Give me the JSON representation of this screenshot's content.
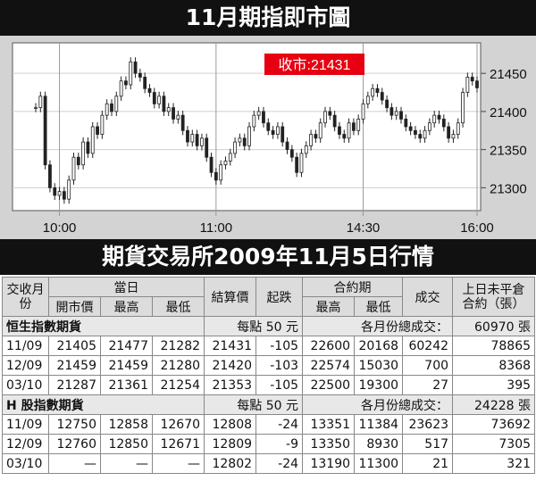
{
  "title": "11月期指即市圖",
  "subtitle": "期貨交易所2009年11月5日行情",
  "chart_data": {
    "type": "candlestick",
    "title": "11月期指即市圖",
    "close_label": "收市:21431",
    "y_ticks": [
      21300,
      21350,
      21400,
      21450
    ],
    "x_ticks": [
      "10:00",
      "11:00",
      "14:30",
      "16:00"
    ],
    "ylim": [
      21270,
      21490
    ],
    "grid": true,
    "path": [
      [
        0,
        21405
      ],
      [
        1,
        21420
      ],
      [
        2,
        21330
      ],
      [
        3,
        21300
      ],
      [
        4,
        21290
      ],
      [
        5,
        21295
      ],
      [
        6,
        21285
      ],
      [
        7,
        21310
      ],
      [
        8,
        21340
      ],
      [
        9,
        21330
      ],
      [
        10,
        21360
      ],
      [
        11,
        21345
      ],
      [
        12,
        21380
      ],
      [
        13,
        21370
      ],
      [
        14,
        21395
      ],
      [
        15,
        21410
      ],
      [
        16,
        21400
      ],
      [
        17,
        21420
      ],
      [
        18,
        21440
      ],
      [
        19,
        21435
      ],
      [
        20,
        21465
      ],
      [
        21,
        21450
      ],
      [
        22,
        21445
      ],
      [
        23,
        21430
      ],
      [
        24,
        21425
      ],
      [
        25,
        21410
      ],
      [
        26,
        21420
      ],
      [
        27,
        21400
      ],
      [
        28,
        21405
      ],
      [
        29,
        21390
      ],
      [
        30,
        21395
      ],
      [
        31,
        21375
      ],
      [
        32,
        21360
      ],
      [
        33,
        21370
      ],
      [
        34,
        21355
      ],
      [
        35,
        21365
      ],
      [
        36,
        21340
      ],
      [
        37,
        21320
      ],
      [
        38,
        21310
      ],
      [
        39,
        21330
      ],
      [
        40,
        21335
      ],
      [
        41,
        21345
      ],
      [
        42,
        21360
      ],
      [
        43,
        21365
      ],
      [
        44,
        21355
      ],
      [
        45,
        21380
      ],
      [
        46,
        21395
      ],
      [
        47,
        21400
      ],
      [
        48,
        21385
      ],
      [
        49,
        21375
      ],
      [
        50,
        21370
      ],
      [
        51,
        21380
      ],
      [
        52,
        21360
      ],
      [
        53,
        21350
      ],
      [
        54,
        21340
      ],
      [
        55,
        21320
      ],
      [
        56,
        21345
      ],
      [
        57,
        21355
      ],
      [
        58,
        21370
      ],
      [
        59,
        21365
      ],
      [
        60,
        21385
      ],
      [
        61,
        21400
      ],
      [
        62,
        21395
      ],
      [
        63,
        21380
      ],
      [
        64,
        21370
      ],
      [
        65,
        21365
      ],
      [
        66,
        21385
      ],
      [
        67,
        21375
      ],
      [
        68,
        21390
      ],
      [
        69,
        21410
      ],
      [
        70,
        21420
      ],
      [
        71,
        21430
      ],
      [
        72,
        21425
      ],
      [
        73,
        21415
      ],
      [
        74,
        21405
      ],
      [
        75,
        21395
      ],
      [
        76,
        21400
      ],
      [
        77,
        21390
      ],
      [
        78,
        21380
      ],
      [
        79,
        21375
      ],
      [
        80,
        21370
      ],
      [
        81,
        21365
      ],
      [
        82,
        21375
      ],
      [
        83,
        21385
      ],
      [
        84,
        21395
      ],
      [
        85,
        21390
      ],
      [
        86,
        21380
      ],
      [
        87,
        21365
      ],
      [
        88,
        21370
      ],
      [
        89,
        21385
      ],
      [
        90,
        21425
      ],
      [
        91,
        21445
      ],
      [
        92,
        21440
      ],
      [
        93,
        21431
      ]
    ]
  },
  "table": {
    "headers": {
      "month": "交收月份",
      "today": "當日",
      "open": "開市價",
      "high": "最高",
      "low": "最低",
      "settle": "結算價",
      "change": "起跌",
      "contract": "合約期",
      "chigh": "最高",
      "clow": "最低",
      "volume": "成交",
      "oi": "上日未平倉合約（張）"
    },
    "groups": [
      {
        "name": "恒生指數期貨",
        "per_point": "每點 50 元",
        "total_label": "各月份總成交：",
        "total": "60970 張",
        "rows": [
          {
            "month": "11/09",
            "open": "21405",
            "high": "21477",
            "low": "21282",
            "settle": "21431",
            "change": "-105",
            "chigh": "22600",
            "clow": "20168",
            "volume": "60242",
            "oi": "78865"
          },
          {
            "month": "12/09",
            "open": "21459",
            "high": "21459",
            "low": "21280",
            "settle": "21420",
            "change": "-103",
            "chigh": "22574",
            "clow": "15030",
            "volume": "700",
            "oi": "8368"
          },
          {
            "month": "03/10",
            "open": "21287",
            "high": "21361",
            "low": "21254",
            "settle": "21353",
            "change": "-105",
            "chigh": "22500",
            "clow": "19300",
            "volume": "27",
            "oi": "395"
          }
        ]
      },
      {
        "name": "H 股指數期貨",
        "per_point": "每點 50 元",
        "total_label": "各月份總成交：",
        "total": "24228 張",
        "rows": [
          {
            "month": "11/09",
            "open": "12750",
            "high": "12858",
            "low": "12670",
            "settle": "12808",
            "change": "-24",
            "chigh": "13351",
            "clow": "11384",
            "volume": "23623",
            "oi": "73692"
          },
          {
            "month": "12/09",
            "open": "12760",
            "high": "12850",
            "low": "12671",
            "settle": "12809",
            "change": "-9",
            "chigh": "13350",
            "clow": "8930",
            "volume": "517",
            "oi": "7305"
          },
          {
            "month": "03/10",
            "open": "—",
            "high": "—",
            "low": "—",
            "settle": "12802",
            "change": "-24",
            "chigh": "13190",
            "clow": "11300",
            "volume": "21",
            "oi": "321"
          }
        ]
      }
    ]
  }
}
